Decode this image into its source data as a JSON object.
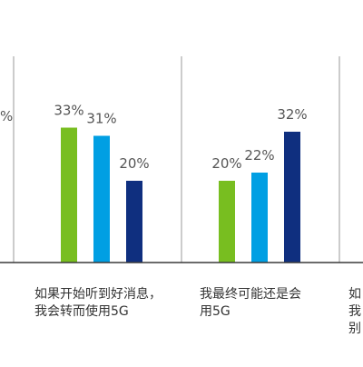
{
  "chart_data": {
    "type": "bar",
    "grid": false,
    "ylim": [
      0,
      40
    ],
    "colors": [
      "#78BE20",
      "#009FE3",
      "#0F2F7F"
    ],
    "groups": [
      {
        "label_lines": [
          "如果开始听到好消息，",
          "我会转而使用5G"
        ],
        "values": [
          33,
          31,
          20
        ],
        "value_labels": [
          "33%",
          "31%",
          "20%"
        ]
      },
      {
        "label_lines": [
          "我最终可能还是会",
          "用5G"
        ],
        "values": [
          20,
          22,
          32
        ],
        "value_labels": [
          "20%",
          "22%",
          "32%"
        ]
      }
    ],
    "partial_left": {
      "value_label_fragment": "%"
    },
    "partial_right": {
      "label_fragments": [
        "如",
        "我",
        "别"
      ]
    }
  }
}
